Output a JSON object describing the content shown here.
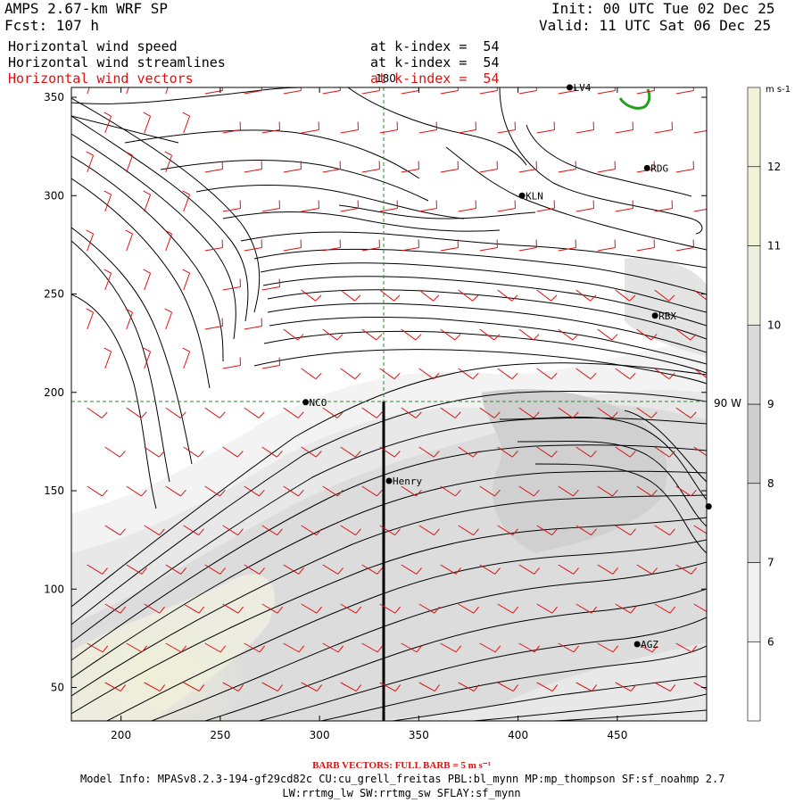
{
  "header": {
    "model": "AMPS 2.67-km WRF SP",
    "forecast": "Fcst: 107 h",
    "init": "Init: 00 UTC Tue 02 Dec 25",
    "valid": "Valid: 11 UTC Sat 06 Dec 25",
    "fields": [
      {
        "name": "Horizontal wind speed",
        "level": "at k-index =  54"
      },
      {
        "name": "Horizontal wind streamlines",
        "level": "at k-index =  54"
      },
      {
        "name": "Horizontal wind vectors",
        "level": "at k-index =  54"
      }
    ]
  },
  "map": {
    "x_ticks": [
      "200",
      "250",
      "300",
      "350",
      "400",
      "450"
    ],
    "y_ticks": [
      "50",
      "100",
      "150",
      "200",
      "250",
      "300",
      "350"
    ],
    "meridian_label": "180",
    "parallel_label": "90 W",
    "stations": [
      {
        "name": "LV4",
        "x": 426,
        "y": 355
      },
      {
        "name": "RDG",
        "x": 465,
        "y": 314
      },
      {
        "name": "KLN",
        "x": 402,
        "y": 300
      },
      {
        "name": "RBX",
        "x": 469,
        "y": 239
      },
      {
        "name": "NCO",
        "x": 293,
        "y": 195
      },
      {
        "name": "Henry",
        "x": 335,
        "y": 155
      },
      {
        "name": "",
        "x": 496,
        "y": 142
      },
      {
        "name": "AGZ",
        "x": 460,
        "y": 72
      }
    ],
    "colors": {
      "barbs": "#e01010",
      "coast": "#20a020",
      "streamlines": "#000000"
    }
  },
  "colorbar": {
    "units": "m s-1",
    "labels": [
      "6",
      "7",
      "8",
      "9",
      "10",
      "11",
      "12"
    ],
    "colors": [
      "#ffffff",
      "#f0f0f0",
      "#dcdcdc",
      "#cfcfcf",
      "#dadada",
      "#efefe0",
      "#f2f2d8"
    ]
  },
  "footer": {
    "barb": "BARB VECTORS:  FULL BARB = 5 m s⁻¹",
    "model_info": "Model Info: MPASv8.2.3-194-gf29cd82c CU:cu_grell_freitas PBL:bl_mynn MP:mp_thompson SF:sf_noahmp 2.7",
    "physics": "LW:rrtmg_lw SW:rrtmg_sw SFLAY:sf_mynn"
  }
}
